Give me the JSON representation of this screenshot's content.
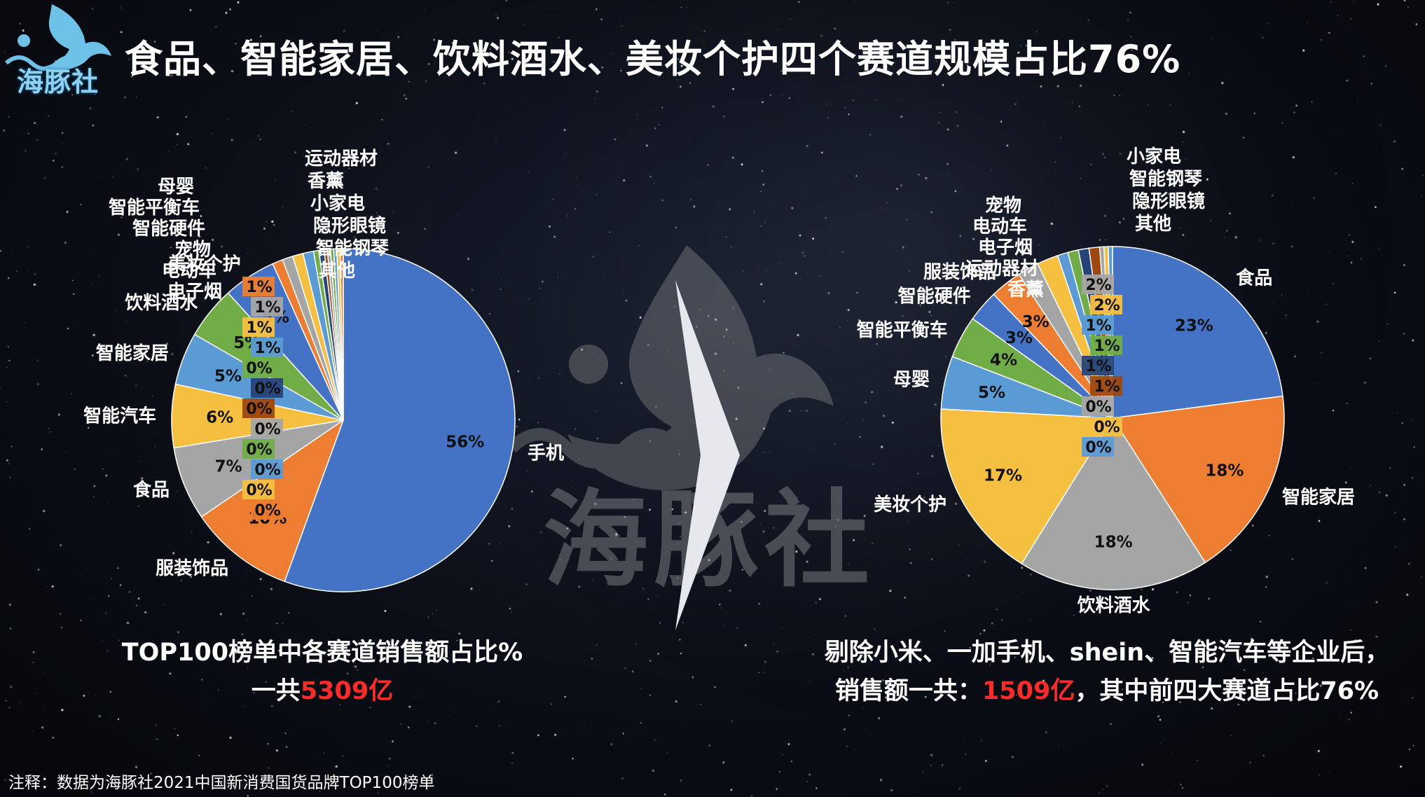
{
  "title": "食品、智能家居、饮料酒水、美妆个护四个赛道规模占比76%",
  "logo_text": "海豚社",
  "watermark_text": "海豚社",
  "colors": {
    "blue": "#4472c4",
    "orange": "#ed7d31",
    "gray": "#a5a5a5",
    "yellow": "#f5c040",
    "lightblue": "#5b9bd5",
    "green": "#70ad47",
    "darkblue": "#264478",
    "brown": "#9e480e",
    "red": "#ff2a2a"
  },
  "left_caption": {
    "line1": "TOP100榜单中各赛道销售额占比%",
    "line2_prefix": "一共",
    "line2_value": "5309亿"
  },
  "right_caption": {
    "line1": "剔除小米、一加手机、shein、智能汽车等企业后，",
    "line2_prefix": "销售额一共：",
    "line2_value": "1509亿",
    "line2_suffix": "，其中前四大赛道占比76%"
  },
  "footnote": "注释：数据为海豚社2021中国新消费国货品牌TOP100榜单",
  "chart_data": [
    {
      "type": "pie",
      "title": "TOP100榜单中各赛道销售额占比%",
      "slices": [
        {
          "label": "手机",
          "value": 56,
          "pct": "56%",
          "color": "#4472c4"
        },
        {
          "label": "服装饰品",
          "value": 10,
          "pct": "10%",
          "color": "#ed7d31"
        },
        {
          "label": "食品",
          "value": 7,
          "pct": "7%",
          "color": "#a5a5a5"
        },
        {
          "label": "智能汽车",
          "value": 6,
          "pct": "6%",
          "color": "#f5c040"
        },
        {
          "label": "智能家居",
          "value": 5,
          "pct": "5%",
          "color": "#5b9bd5"
        },
        {
          "label": "饮料酒水",
          "value": 5,
          "pct": "5%",
          "color": "#70ad47"
        },
        {
          "label": "美妆个护",
          "value": 5,
          "pct": "5%",
          "color": "#4472c4"
        },
        {
          "label": "母婴",
          "value": 1,
          "pct": "1%",
          "color": "#ed7d31"
        },
        {
          "label": "智能平衡车",
          "value": 1,
          "pct": "1%",
          "color": "#a5a5a5"
        },
        {
          "label": "智能硬件",
          "value": 1,
          "pct": "1%",
          "color": "#f5c040"
        },
        {
          "label": "宠物",
          "value": 1,
          "pct": "1%",
          "color": "#5b9bd5"
        },
        {
          "label": "电动车",
          "value": 0.5,
          "pct": "0%",
          "color": "#70ad47"
        },
        {
          "label": "电子烟",
          "value": 0.5,
          "pct": "0%",
          "color": "#264478"
        },
        {
          "label": "运动器材",
          "value": 0.3,
          "pct": "0%",
          "color": "#9e480e"
        },
        {
          "label": "香薰",
          "value": 0.3,
          "pct": "0%",
          "color": "#a5a5a5"
        },
        {
          "label": "小家电",
          "value": 0.3,
          "pct": "0%",
          "color": "#70ad47"
        },
        {
          "label": "隐形眼镜",
          "value": 0.3,
          "pct": "0%",
          "color": "#5b9bd5"
        },
        {
          "label": "智能钢琴",
          "value": 0.3,
          "pct": "0%",
          "color": "#f5c040"
        },
        {
          "label": "其他",
          "value": 0.3,
          "pct": "0%",
          "color": "#ed7d31"
        }
      ]
    },
    {
      "type": "pie",
      "title": "剔除小米、一加手机、shein、智能汽车等企业后，销售额一共：1509亿，其中前四大赛道占比76%",
      "slices": [
        {
          "label": "食品",
          "value": 23,
          "pct": "23%",
          "color": "#4472c4"
        },
        {
          "label": "智能家居",
          "value": 18,
          "pct": "18%",
          "color": "#ed7d31"
        },
        {
          "label": "饮料酒水",
          "value": 18,
          "pct": "18%",
          "color": "#a5a5a5"
        },
        {
          "label": "美妆个护",
          "value": 17,
          "pct": "17%",
          "color": "#f5c040"
        },
        {
          "label": "母婴",
          "value": 5,
          "pct": "5%",
          "color": "#5b9bd5"
        },
        {
          "label": "智能平衡车",
          "value": 4,
          "pct": "4%",
          "color": "#70ad47"
        },
        {
          "label": "智能硬件",
          "value": 3,
          "pct": "3%",
          "color": "#4472c4"
        },
        {
          "label": "服装饰品",
          "value": 3,
          "pct": "3%",
          "color": "#ed7d31"
        },
        {
          "label": "宠物",
          "value": 2,
          "pct": "2%",
          "color": "#a5a5a5"
        },
        {
          "label": "电动车",
          "value": 2,
          "pct": "2%",
          "color": "#f5c040"
        },
        {
          "label": "电子烟",
          "value": 1,
          "pct": "1%",
          "color": "#5b9bd5"
        },
        {
          "label": "运动器材",
          "value": 1,
          "pct": "1%",
          "color": "#70ad47"
        },
        {
          "label": "香薰",
          "value": 1,
          "pct": "1%",
          "color": "#264478"
        },
        {
          "label": "小家电",
          "value": 1,
          "pct": "1%",
          "color": "#9e480e"
        },
        {
          "label": "智能钢琴",
          "value": 0.4,
          "pct": "0%",
          "color": "#a5a5a5"
        },
        {
          "label": "隐形眼镜",
          "value": 0.4,
          "pct": "0%",
          "color": "#f5c040"
        },
        {
          "label": "其他",
          "value": 0.4,
          "pct": "0%",
          "color": "#5b9bd5"
        }
      ]
    }
  ]
}
